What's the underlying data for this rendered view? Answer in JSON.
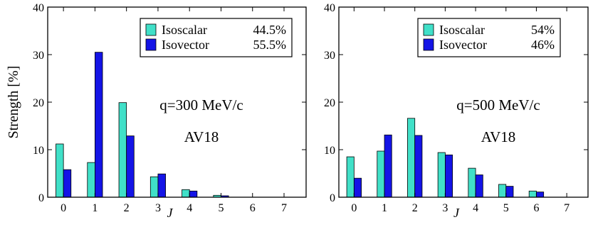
{
  "chart_data": [
    {
      "type": "bar",
      "ylabel": "Strength [%]",
      "xlabel": "J",
      "ylim": [
        0,
        40
      ],
      "yticks": [
        0,
        10,
        20,
        30,
        40
      ],
      "categories": [
        "0",
        "1",
        "2",
        "3",
        "4",
        "5",
        "6",
        "7"
      ],
      "annotations": [
        "q=300 MeV/c",
        "AV18"
      ],
      "legend_position": "top-right",
      "colors": {
        "isoscalar": "#40e0c8",
        "isovector": "#1414e6"
      },
      "series": [
        {
          "name": "Isoscalar",
          "percent": "44.5%",
          "values": [
            11.2,
            7.3,
            19.9,
            4.3,
            1.6,
            0.4,
            0,
            0
          ]
        },
        {
          "name": "Isovector",
          "percent": "55.5%",
          "values": [
            5.8,
            30.5,
            12.9,
            4.9,
            1.3,
            0.3,
            0,
            0
          ]
        }
      ]
    },
    {
      "type": "bar",
      "ylabel": "",
      "xlabel": "J",
      "ylim": [
        0,
        40
      ],
      "yticks": [
        0,
        10,
        20,
        30,
        40
      ],
      "categories": [
        "0",
        "1",
        "2",
        "3",
        "4",
        "5",
        "6",
        "7"
      ],
      "annotations": [
        "q=500 MeV/c",
        "AV18"
      ],
      "legend_position": "top-right",
      "colors": {
        "isoscalar": "#40e0c8",
        "isovector": "#1414e6"
      },
      "series": [
        {
          "name": "Isoscalar",
          "percent": "54%",
          "values": [
            8.5,
            9.7,
            16.6,
            9.4,
            6.1,
            2.7,
            1.3,
            0
          ]
        },
        {
          "name": "Isovector",
          "percent": "46%",
          "values": [
            4.0,
            13.1,
            13.0,
            8.9,
            4.7,
            2.3,
            1.1,
            0
          ]
        }
      ]
    }
  ]
}
